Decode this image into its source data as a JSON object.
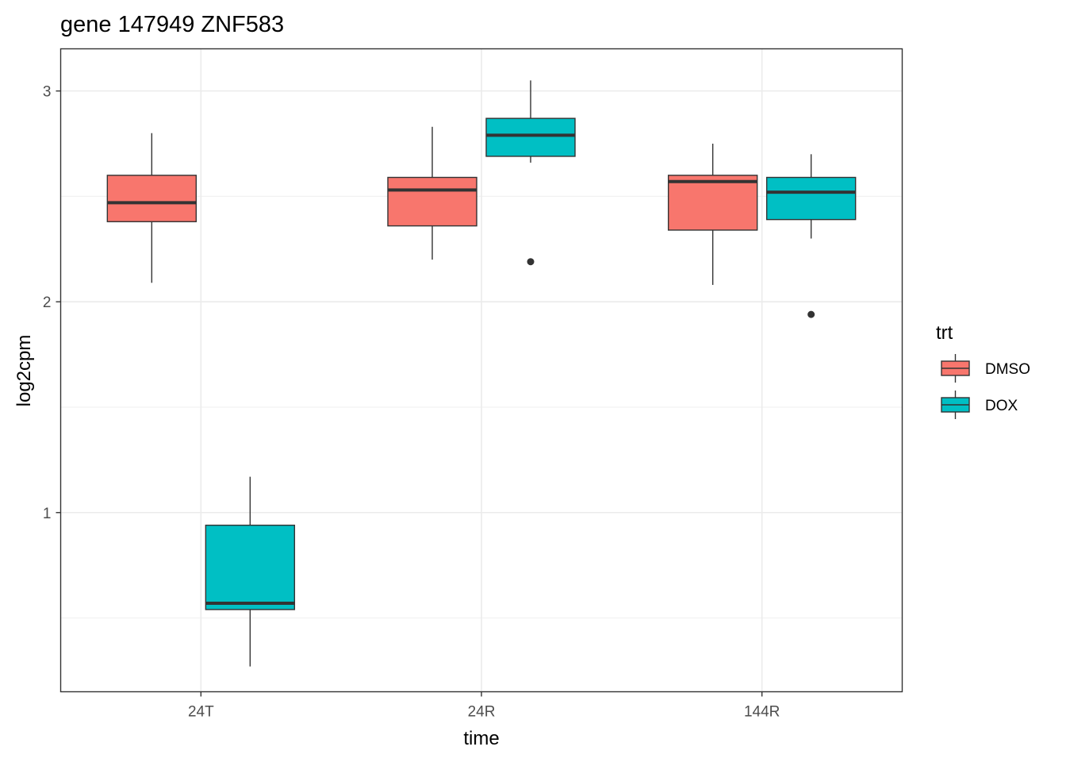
{
  "chart_data": {
    "type": "box",
    "title": "gene 147949 ZNF583",
    "xlabel": "time",
    "ylabel": "log2cpm",
    "categories": [
      "24T",
      "24R",
      "144R"
    ],
    "y_ticks": [
      1,
      2,
      3
    ],
    "ylim": [
      0.15,
      3.2
    ],
    "grid": true,
    "legend": {
      "title": "trt",
      "position": "right"
    },
    "series": [
      {
        "name": "DMSO",
        "color": "#F8766D",
        "boxes": [
          {
            "category": "24T",
            "min": 2.09,
            "q1": 2.38,
            "median": 2.47,
            "q3": 2.6,
            "max": 2.8,
            "outliers": []
          },
          {
            "category": "24R",
            "min": 2.2,
            "q1": 2.36,
            "median": 2.53,
            "q3": 2.59,
            "max": 2.83,
            "outliers": []
          },
          {
            "category": "144R",
            "min": 2.08,
            "q1": 2.34,
            "median": 2.57,
            "q3": 2.6,
            "max": 2.75,
            "outliers": []
          }
        ]
      },
      {
        "name": "DOX",
        "color": "#00BFC4",
        "boxes": [
          {
            "category": "24T",
            "min": 0.27,
            "q1": 0.54,
            "median": 0.57,
            "q3": 0.94,
            "max": 1.17,
            "outliers": []
          },
          {
            "category": "24R",
            "min": 2.66,
            "q1": 2.69,
            "median": 2.79,
            "q3": 2.87,
            "max": 3.05,
            "outliers": [
              2.19
            ]
          },
          {
            "category": "144R",
            "min": 2.3,
            "q1": 2.39,
            "median": 2.52,
            "q3": 2.59,
            "max": 2.7,
            "outliers": [
              1.94
            ]
          }
        ]
      }
    ]
  }
}
